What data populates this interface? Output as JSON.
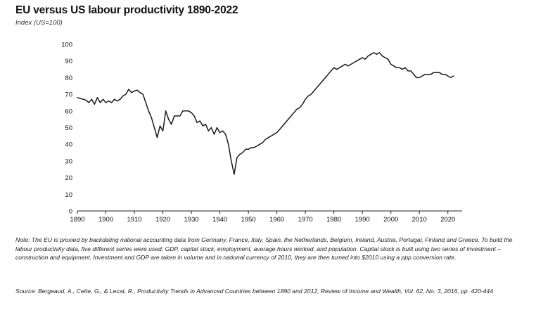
{
  "title": "EU versus US labour productivity 1890-2022",
  "subtitle": "Index (US=100)",
  "note": "Note: The EU is proxied by backdating national accounting data from Germany, France, Italy, Spain, the Netherlands, Belgium, Ireland, Austria, Portugal, Finland and Greece. To build the labour productivity data, five different series were used: GDP, capital stock, employment, average hours worked, and population. Capital stock is built using two series of investment – construction and equipment. Investment and GDP are taken in volume and in national currency of 2010, they are then turned into $2010 using a ppp conversion rate.",
  "source": "Source: Bergeaud, A., Cette, G., & Lecat, R., Productivity Trends in Advanced Countries between 1890 and 2012, Review of Income and Wealth, Vol. 62, No. 3, 2016, pp. 420-444",
  "colors": {
    "line": "#1a1a1a",
    "axis": "#222222",
    "text": "#111111"
  },
  "chart_data": {
    "type": "line",
    "title": "EU versus US labour productivity 1890-2022",
    "ylabel": "Index (US=100)",
    "xlabel": "",
    "xlim": [
      1890,
      2025
    ],
    "ylim": [
      0,
      100
    ],
    "xticks": [
      1890,
      1900,
      1910,
      1920,
      1930,
      1940,
      1950,
      1960,
      1970,
      1980,
      1990,
      2000,
      2010,
      2020
    ],
    "yticks": [
      0,
      10,
      20,
      30,
      40,
      50,
      60,
      70,
      80,
      90,
      100
    ],
    "grid": false,
    "series": [
      {
        "name": "EU versus US labour productivity",
        "x": [
          1890,
          1891,
          1892,
          1893,
          1894,
          1895,
          1896,
          1897,
          1898,
          1899,
          1900,
          1901,
          1902,
          1903,
          1904,
          1905,
          1906,
          1907,
          1908,
          1909,
          1910,
          1911,
          1912,
          1913,
          1914,
          1915,
          1916,
          1917,
          1918,
          1919,
          1920,
          1921,
          1922,
          1923,
          1924,
          1925,
          1926,
          1927,
          1928,
          1929,
          1930,
          1931,
          1932,
          1933,
          1934,
          1935,
          1936,
          1937,
          1938,
          1939,
          1940,
          1941,
          1942,
          1943,
          1944,
          1945,
          1946,
          1947,
          1948,
          1949,
          1950,
          1951,
          1952,
          1953,
          1954,
          1955,
          1956,
          1957,
          1958,
          1959,
          1960,
          1961,
          1962,
          1963,
          1964,
          1965,
          1966,
          1967,
          1968,
          1969,
          1970,
          1971,
          1972,
          1973,
          1974,
          1975,
          1976,
          1977,
          1978,
          1979,
          1980,
          1981,
          1982,
          1983,
          1984,
          1985,
          1986,
          1987,
          1988,
          1989,
          1990,
          1991,
          1992,
          1993,
          1994,
          1995,
          1996,
          1997,
          1998,
          1999,
          2000,
          2001,
          2002,
          2003,
          2004,
          2005,
          2006,
          2007,
          2008,
          2009,
          2010,
          2011,
          2012,
          2013,
          2014,
          2015,
          2016,
          2017,
          2018,
          2019,
          2020,
          2021,
          2022
        ],
        "values": [
          68,
          67.5,
          67,
          66.5,
          65,
          67,
          64,
          68,
          65,
          67,
          65,
          66,
          65,
          67,
          66,
          67,
          69,
          70,
          73,
          71,
          72,
          72.5,
          71,
          70,
          65,
          60,
          56,
          50,
          44,
          51,
          48,
          60,
          55,
          52,
          57,
          57,
          57,
          60,
          60,
          60,
          59,
          57,
          53,
          54,
          51,
          52,
          48,
          50,
          46,
          50,
          47,
          48,
          46,
          40,
          30,
          22,
          32,
          34,
          35,
          37,
          37,
          38,
          38,
          39,
          40,
          41,
          43,
          44,
          45,
          46,
          47,
          49,
          51,
          53,
          55,
          57,
          59,
          61,
          62,
          64,
          67,
          69,
          70,
          72,
          74,
          76,
          78,
          80,
          82,
          84,
          86,
          85,
          86,
          87,
          88,
          87,
          88,
          89,
          90,
          91,
          92,
          91,
          93,
          94,
          95,
          94,
          95,
          93,
          92,
          91,
          88,
          87,
          86,
          86,
          85,
          86,
          84,
          84,
          82,
          80,
          80,
          81,
          82,
          82,
          82,
          83,
          83,
          83,
          82,
          82,
          81,
          80,
          81
        ]
      }
    ]
  }
}
